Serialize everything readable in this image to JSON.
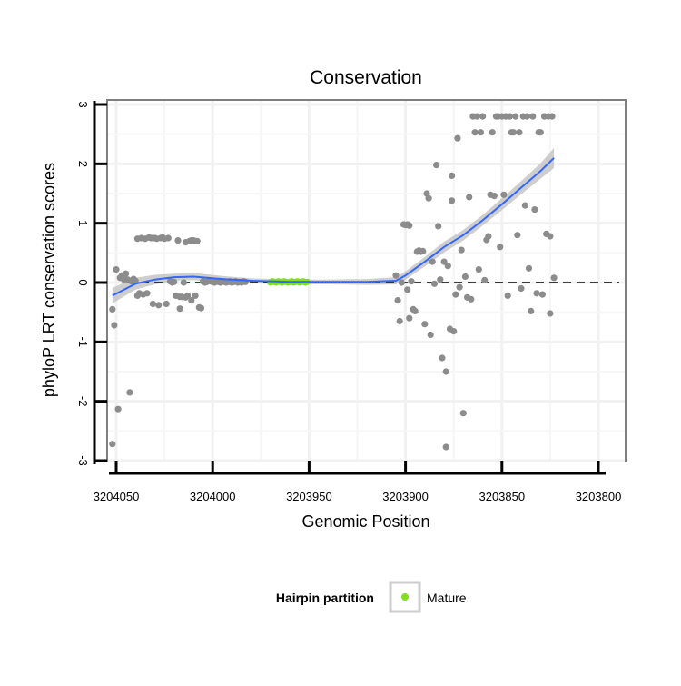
{
  "chart_data": {
    "type": "scatter",
    "title": "Conservation",
    "xlabel": "Genomic Position",
    "ylabel": "phyloP LRT conservation scores",
    "x_reversed": true,
    "xlim": [
      3204060,
      3203790
    ],
    "ylim": [
      -3,
      3
    ],
    "x_ticks": [
      3204050,
      3204000,
      3203950,
      3203900,
      3203850,
      3203800
    ],
    "x_tick_labels": [
      "3204050",
      "3204000",
      "3203950",
      "3203900",
      "3203850",
      "3203800"
    ],
    "y_ticks": [
      -3,
      -2,
      -1,
      0,
      1,
      2,
      3
    ],
    "y_tick_labels": [
      "-3",
      "-2",
      "-1",
      "0",
      "1",
      "2",
      "3"
    ],
    "reference_line": {
      "y": 0,
      "style": "dashed"
    },
    "legend": {
      "title": "Hairpin partition",
      "entries": [
        {
          "label": "Mature",
          "color": "#7FE020"
        }
      ],
      "position": "bottom"
    },
    "series": [
      {
        "name": "Scores",
        "color": "#8c8c8c",
        "points": [
          [
            3204052,
            -0.45
          ],
          [
            3204052,
            -2.72
          ],
          [
            3204051,
            -0.72
          ],
          [
            3204050,
            0.22
          ],
          [
            3204049,
            -2.13
          ],
          [
            3204048,
            0.08
          ],
          [
            3204047,
            0.12
          ],
          [
            3204046,
            0.05
          ],
          [
            3204045,
            0.15
          ],
          [
            3204044,
            0.05
          ],
          [
            3204043,
            -1.85
          ],
          [
            3204042,
            0.02
          ],
          [
            3204041,
            0.06
          ],
          [
            3204040,
            0.03
          ],
          [
            3204039,
            0.74
          ],
          [
            3204039,
            -0.22
          ],
          [
            3204038,
            -0.18
          ],
          [
            3204037,
            0.75
          ],
          [
            3204036,
            -0.2
          ],
          [
            3204035,
            0.74
          ],
          [
            3204034,
            -0.18
          ],
          [
            3204033,
            0.76
          ],
          [
            3204032,
            0.75
          ],
          [
            3204031,
            0.75
          ],
          [
            3204031,
            -0.36
          ],
          [
            3204030,
            0.75
          ],
          [
            3204029,
            0.74
          ],
          [
            3204028,
            -0.38
          ],
          [
            3204027,
            0.75
          ],
          [
            3204026,
            0.76
          ],
          [
            3204025,
            0.74
          ],
          [
            3204024,
            -0.36
          ],
          [
            3204023,
            0.75
          ],
          [
            3204022,
            0.02
          ],
          [
            3204021,
            0.0
          ],
          [
            3204020,
            0.01
          ],
          [
            3204019,
            -0.22
          ],
          [
            3204018,
            0.71
          ],
          [
            3204017,
            -0.24
          ],
          [
            3204017,
            -0.44
          ],
          [
            3204016,
            -0.24
          ],
          [
            3204015,
            0.0
          ],
          [
            3204014,
            0.68
          ],
          [
            3204014,
            -0.25
          ],
          [
            3204013,
            -0.22
          ],
          [
            3204012,
            0.7
          ],
          [
            3204011,
            0.71
          ],
          [
            3204011,
            -0.3
          ],
          [
            3204010,
            0.71
          ],
          [
            3204009,
            0.7
          ],
          [
            3204009,
            -0.22
          ],
          [
            3204008,
            0.7
          ],
          [
            3204007,
            -0.42
          ],
          [
            3204006,
            -0.43
          ],
          [
            3204005,
            0.02
          ],
          [
            3204004,
            0.0
          ],
          [
            3204003,
            0.01
          ],
          [
            3204002,
            0.03
          ],
          [
            3204001,
            0.02
          ],
          [
            3204000,
            0.01
          ],
          [
            3203999,
            0.0
          ],
          [
            3203998,
            0.02
          ],
          [
            3203997,
            0.01
          ],
          [
            3203996,
            0.0
          ],
          [
            3203995,
            0.02
          ],
          [
            3203994,
            0.01
          ],
          [
            3203993,
            0.0
          ],
          [
            3203992,
            0.01
          ],
          [
            3203991,
            0.02
          ],
          [
            3203990,
            0.0
          ],
          [
            3203989,
            0.01
          ],
          [
            3203988,
            0.02
          ],
          [
            3203987,
            0.0
          ],
          [
            3203986,
            0.01
          ],
          [
            3203985,
            0.0
          ],
          [
            3203984,
            0.02
          ],
          [
            3203983,
            0.01
          ],
          [
            3203905,
            0.12
          ],
          [
            3203904,
            -0.3
          ],
          [
            3203903,
            -0.65
          ],
          [
            3203902,
            0.0
          ],
          [
            3203901,
            0.98
          ],
          [
            3203900,
            0.97
          ],
          [
            3203899,
            0.98
          ],
          [
            3203899,
            -0.12
          ],
          [
            3203898,
            0.96
          ],
          [
            3203898,
            -0.6
          ],
          [
            3203897,
            0.02
          ],
          [
            3203896,
            -0.45
          ],
          [
            3203895,
            -0.48
          ],
          [
            3203894,
            0.52
          ],
          [
            3203893,
            0.54
          ],
          [
            3203892,
            0.52
          ],
          [
            3203891,
            0.53
          ],
          [
            3203890,
            -0.7
          ],
          [
            3203889,
            1.5
          ],
          [
            3203888,
            1.42
          ],
          [
            3203887,
            -0.88
          ],
          [
            3203886,
            0.35
          ],
          [
            3203885,
            -0.02
          ],
          [
            3203884,
            1.98
          ],
          [
            3203883,
            0.95
          ],
          [
            3203882,
            0.05
          ],
          [
            3203881,
            -1.27
          ],
          [
            3203880,
            0.35
          ],
          [
            3203879,
            -1.5
          ],
          [
            3203879,
            -2.77
          ],
          [
            3203878,
            0.28
          ],
          [
            3203877,
            -0.78
          ],
          [
            3203876,
            1.38
          ],
          [
            3203876,
            1.8
          ],
          [
            3203875,
            -0.82
          ],
          [
            3203874,
            -0.2
          ],
          [
            3203873,
            2.43
          ],
          [
            3203872,
            -0.08
          ],
          [
            3203871,
            0.55
          ],
          [
            3203870,
            -2.2
          ],
          [
            3203869,
            0.1
          ],
          [
            3203868,
            -0.25
          ],
          [
            3203867,
            1.44
          ],
          [
            3203866,
            -0.28
          ],
          [
            3203865,
            2.8
          ],
          [
            3203864,
            2.53
          ],
          [
            3203863,
            2.8
          ],
          [
            3203862,
            0.22
          ],
          [
            3203861,
            2.53
          ],
          [
            3203860,
            2.8
          ],
          [
            3203859,
            0.04
          ],
          [
            3203858,
            0.72
          ],
          [
            3203857,
            0.78
          ],
          [
            3203856,
            1.48
          ],
          [
            3203855,
            2.53
          ],
          [
            3203854,
            1.46
          ],
          [
            3203853,
            2.8
          ],
          [
            3203852,
            2.8
          ],
          [
            3203851,
            0.6
          ],
          [
            3203850,
            2.8
          ],
          [
            3203849,
            1.48
          ],
          [
            3203848,
            2.8
          ],
          [
            3203847,
            -0.22
          ],
          [
            3203846,
            2.8
          ],
          [
            3203845,
            2.53
          ],
          [
            3203844,
            2.53
          ],
          [
            3203843,
            2.8
          ],
          [
            3203842,
            0.8
          ],
          [
            3203841,
            2.53
          ],
          [
            3203840,
            -0.1
          ],
          [
            3203839,
            2.8
          ],
          [
            3203838,
            1.3
          ],
          [
            3203837,
            2.8
          ],
          [
            3203836,
            0.24
          ],
          [
            3203835,
            -0.48
          ],
          [
            3203834,
            2.8
          ],
          [
            3203833,
            1.23
          ],
          [
            3203832,
            -0.18
          ],
          [
            3203831,
            2.53
          ],
          [
            3203830,
            2.53
          ],
          [
            3203829,
            -0.2
          ],
          [
            3203828,
            2.8
          ],
          [
            3203827,
            0.82
          ],
          [
            3203826,
            2.8
          ],
          [
            3203825,
            0.78
          ],
          [
            3203825,
            -0.52
          ],
          [
            3203824,
            2.8
          ],
          [
            3203823,
            0.08
          ]
        ]
      },
      {
        "name": "Mature",
        "color": "#7FE020",
        "points": [
          [
            3203970,
            0.0
          ],
          [
            3203969,
            0.02
          ],
          [
            3203968,
            0.01
          ],
          [
            3203967,
            0.0
          ],
          [
            3203966,
            0.02
          ],
          [
            3203965,
            0.01
          ],
          [
            3203964,
            0.0
          ],
          [
            3203963,
            0.02
          ],
          [
            3203962,
            0.01
          ],
          [
            3203961,
            0.0
          ],
          [
            3203960,
            0.01
          ],
          [
            3203959,
            0.02
          ],
          [
            3203958,
            0.0
          ],
          [
            3203957,
            0.01
          ],
          [
            3203956,
            0.02
          ],
          [
            3203955,
            0.0
          ],
          [
            3203954,
            0.01
          ],
          [
            3203953,
            0.02
          ],
          [
            3203952,
            0.0
          ],
          [
            3203951,
            0.01
          ]
        ]
      }
    ],
    "smooth": {
      "name": "Smoothed trend",
      "color": "#3366FF",
      "band_color": "#BDBDBD",
      "points": [
        [
          3204052,
          -0.22,
          0.13
        ],
        [
          3204040,
          -0.02,
          0.1
        ],
        [
          3204030,
          0.05,
          0.08
        ],
        [
          3204020,
          0.09,
          0.06
        ],
        [
          3204010,
          0.1,
          0.06
        ],
        [
          3203995,
          0.06,
          0.05
        ],
        [
          3203980,
          0.03,
          0.04
        ],
        [
          3203960,
          0.01,
          0.04
        ],
        [
          3203940,
          0.01,
          0.04
        ],
        [
          3203920,
          0.01,
          0.05
        ],
        [
          3203905,
          0.03,
          0.06
        ],
        [
          3203900,
          0.12,
          0.07
        ],
        [
          3203890,
          0.35,
          0.08
        ],
        [
          3203880,
          0.6,
          0.09
        ],
        [
          3203870,
          0.8,
          0.09
        ],
        [
          3203860,
          1.05,
          0.09
        ],
        [
          3203850,
          1.32,
          0.1
        ],
        [
          3203840,
          1.6,
          0.11
        ],
        [
          3203830,
          1.88,
          0.13
        ],
        [
          3203823,
          2.1,
          0.17
        ]
      ]
    }
  }
}
